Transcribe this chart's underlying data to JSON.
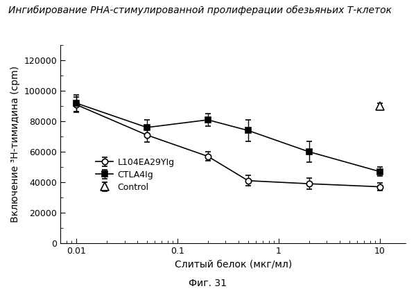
{
  "title": "Ингибирование РНА-стимулированной пролиферации обезьяньих Т-клеток",
  "xlabel": "Слитый белок (мкг/мл)",
  "ylabel": "Включение ³H-тимидина (cpm)",
  "caption": "Фиг. 31",
  "x_L104": [
    0.01,
    0.05,
    0.2,
    0.5,
    2.0,
    10.0
  ],
  "y_L104": [
    91000,
    71000,
    57000,
    41000,
    39000,
    37000
  ],
  "yerr_L104": [
    5000,
    4500,
    3000,
    3500,
    3500,
    2500
  ],
  "x_CTLA4": [
    0.01,
    0.05,
    0.2,
    0.5,
    2.0,
    10.0
  ],
  "y_CTLA4": [
    92000,
    76000,
    81000,
    74000,
    60000,
    47000
  ],
  "yerr_CTLA4": [
    5500,
    5000,
    4000,
    7000,
    7000,
    3000
  ],
  "x_Control": [
    10.0
  ],
  "y_Control": [
    90000
  ],
  "yerr_Control": [
    2000
  ],
  "ylim": [
    0,
    130000
  ],
  "yticks": [
    0,
    20000,
    40000,
    60000,
    80000,
    100000,
    120000
  ],
  "ytick_labels": [
    "0",
    "20000",
    "40000",
    "60000",
    "80000",
    "100000",
    "120000"
  ],
  "xtick_labels": [
    "0.01",
    "0.1",
    "1",
    "10"
  ],
  "background": "#ffffff",
  "line_color": "#000000",
  "legend_labels": [
    "L104EA29YIg",
    "CTLA4Ig",
    "Control"
  ]
}
